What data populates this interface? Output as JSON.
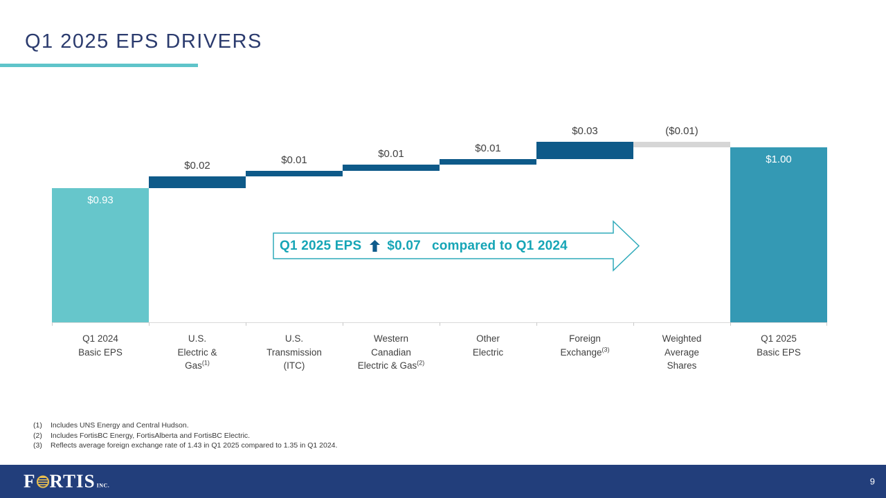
{
  "slide": {
    "title": "Q1 2025 EPS DRIVERS",
    "page_number": "9"
  },
  "callout": {
    "prefix": "Q1 2025 EPS",
    "amount": "$0.07",
    "suffix": "compared to Q1 2024"
  },
  "footnotes": [
    {
      "num": "(1)",
      "text": "Includes UNS Energy and Central Hudson."
    },
    {
      "num": "(2)",
      "text": "Includes FortisBC Energy, FortisAlberta and FortisBC Electric."
    },
    {
      "num": "(3)",
      "text": "Reflects average foreign exchange rate of 1.43 in Q1 2025 compared to 1.35 in Q1 2024."
    }
  ],
  "footer": {
    "logo_part1": "F",
    "logo_part2": "RTIS",
    "logo_suffix": "INC."
  },
  "chart_data": {
    "type": "bar",
    "subtype": "waterfall",
    "title": "Q1 2025 EPS Drivers (EPS bridge, $ per share)",
    "xlabel": "",
    "ylabel": "",
    "grid": false,
    "legend": false,
    "ylim": [
      0.7,
      1.075
    ],
    "categories": [
      {
        "lines": [
          "Q1 2024",
          "Basic EPS"
        ]
      },
      {
        "lines": [
          "U.S.",
          "Electric &",
          "Gas"
        ],
        "sup": "(1)"
      },
      {
        "lines": [
          "U.S.",
          "Transmission",
          "(ITC)"
        ]
      },
      {
        "lines": [
          "Western",
          "Canadian",
          "Electric & Gas"
        ],
        "sup": "(2)"
      },
      {
        "lines": [
          "Other",
          "Electric"
        ]
      },
      {
        "lines": [
          "Foreign",
          "Exchange"
        ],
        "sup": "(3)"
      },
      {
        "lines": [
          "Weighted",
          "Average",
          "Shares"
        ]
      },
      {
        "lines": [
          "Q1 2025",
          "Basic EPS"
        ]
      }
    ],
    "bars": [
      {
        "name": "Q1 2024 Basic EPS",
        "label": "$0.93",
        "role": "total",
        "value": 0.93,
        "color_key": "start",
        "label_placement": "inside"
      },
      {
        "name": "U.S. Electric & Gas",
        "label": "$0.02",
        "role": "increase",
        "delta": 0.02,
        "color_key": "increase",
        "label_placement": "above"
      },
      {
        "name": "U.S. Transmission (ITC)",
        "label": "$0.01",
        "role": "increase",
        "delta": 0.01,
        "color_key": "increase",
        "label_placement": "above"
      },
      {
        "name": "Western Canadian Electric & Gas",
        "label": "$0.01",
        "role": "increase",
        "delta": 0.01,
        "color_key": "increase",
        "label_placement": "above"
      },
      {
        "name": "Other Electric",
        "label": "$0.01",
        "role": "increase",
        "delta": 0.01,
        "color_key": "increase",
        "label_placement": "above"
      },
      {
        "name": "Foreign Exchange",
        "label": "$0.03",
        "role": "increase",
        "delta": 0.03,
        "color_key": "increase",
        "label_placement": "above"
      },
      {
        "name": "Weighted Average Shares",
        "label": "($0.01)",
        "role": "decrease",
        "delta": -0.01,
        "color_key": "decrease",
        "label_placement": "above"
      },
      {
        "name": "Q1 2025 Basic EPS",
        "label": "$1.00",
        "role": "total",
        "value": 1.0,
        "color_key": "end",
        "label_placement": "inside"
      }
    ],
    "cumulative": [
      0.93,
      0.95,
      0.96,
      0.97,
      0.98,
      1.01,
      1.0,
      1.0
    ],
    "colors": {
      "start": "#66C6CB",
      "end": "#3499B4",
      "increase": "#0E5A89",
      "decrease": "#D6D6D6",
      "value_label": "#404040",
      "value_label_inside": "#FFFFFF",
      "axis": "#D9D9D9",
      "title_navy": "#2B3B6E",
      "accent_teal": "#5FC4CA",
      "callout_teal": "#16A5B6",
      "footer_navy": "#223E7B",
      "logo_gold": "#E9BF4F"
    }
  }
}
